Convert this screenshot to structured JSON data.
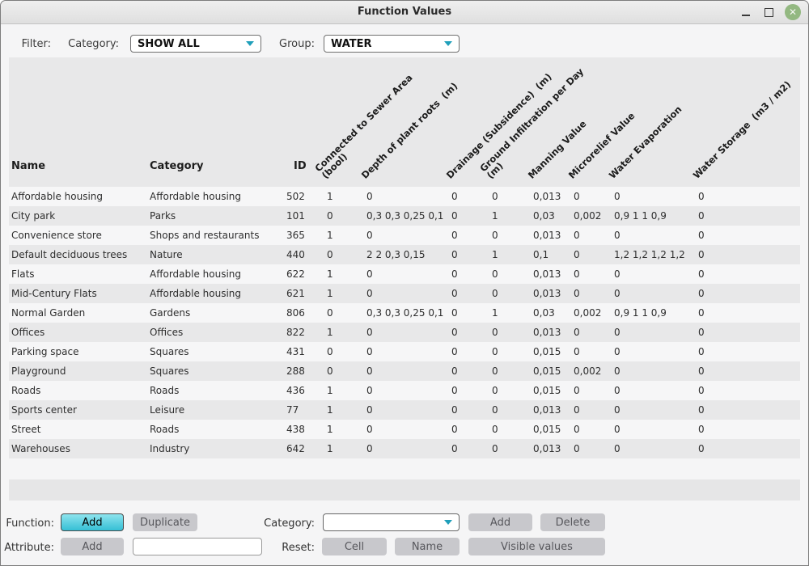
{
  "window": {
    "title": "Function Values"
  },
  "filter": {
    "filter_label": "Filter:",
    "category_label": "Category:",
    "category_value": "SHOW ALL",
    "group_label": "Group:",
    "group_value": "WATER"
  },
  "table": {
    "headers": [
      "Name",
      "Category",
      "ID"
    ],
    "rotated_headers": [
      "Connected to Sewer Area\n(bool)",
      "Depth of plant roots  (m)",
      "Drainage (Subsidence)  (m)",
      "Ground Infiltration per Day\n(m)",
      "Manning Value",
      "Microrelief Value",
      "Water Evaporation",
      "Water Storage  (m3 / m2)"
    ],
    "rows": [
      {
        "name": "Affordable housing",
        "category": "Affordable housing",
        "id": "502",
        "connected": "1",
        "depth": "0",
        "drainage": "0",
        "ground": "0",
        "manning": "0,013",
        "microrelief": "0",
        "evaporation": "0",
        "storage": "0"
      },
      {
        "name": "City park",
        "category": "Parks",
        "id": "101",
        "connected": "0",
        "depth": "0,3 0,3 0,25 0,1",
        "drainage": "0",
        "ground": "1",
        "manning": "0,03",
        "microrelief": "0,002",
        "evaporation": "0,9 1 1 0,9",
        "storage": "0"
      },
      {
        "name": "Convenience store",
        "category": "Shops and restaurants",
        "id": "365",
        "connected": "1",
        "depth": "0",
        "drainage": "0",
        "ground": "0",
        "manning": "0,013",
        "microrelief": "0",
        "evaporation": "0",
        "storage": "0"
      },
      {
        "name": "Default deciduous trees",
        "category": "Nature",
        "id": "440",
        "connected": "0",
        "depth": "2 2 0,3 0,15",
        "drainage": "0",
        "ground": "1",
        "manning": "0,1",
        "microrelief": "0",
        "evaporation": "1,2 1,2 1,2 1,2",
        "storage": "0"
      },
      {
        "name": "Flats",
        "category": "Affordable housing",
        "id": "622",
        "connected": "1",
        "depth": "0",
        "drainage": "0",
        "ground": "0",
        "manning": "0,013",
        "microrelief": "0",
        "evaporation": "0",
        "storage": "0"
      },
      {
        "name": "Mid-Century Flats",
        "category": "Affordable housing",
        "id": "621",
        "connected": "1",
        "depth": "0",
        "drainage": "0",
        "ground": "0",
        "manning": "0,013",
        "microrelief": "0",
        "evaporation": "0",
        "storage": "0"
      },
      {
        "name": "Normal Garden",
        "category": "Gardens",
        "id": "806",
        "connected": "0",
        "depth": "0,3 0,3 0,25 0,1",
        "drainage": "0",
        "ground": "1",
        "manning": "0,03",
        "microrelief": "0,002",
        "evaporation": "0,9 1 1 0,9",
        "storage": "0"
      },
      {
        "name": "Offices",
        "category": "Offices",
        "id": "822",
        "connected": "1",
        "depth": "0",
        "drainage": "0",
        "ground": "0",
        "manning": "0,013",
        "microrelief": "0",
        "evaporation": "0",
        "storage": "0"
      },
      {
        "name": "Parking space",
        "category": "Squares",
        "id": "431",
        "connected": "0",
        "depth": "0",
        "drainage": "0",
        "ground": "0",
        "manning": "0,015",
        "microrelief": "0",
        "evaporation": "0",
        "storage": "0"
      },
      {
        "name": "Playground",
        "category": "Squares",
        "id": "288",
        "connected": "0",
        "depth": "0",
        "drainage": "0",
        "ground": "0",
        "manning": "0,015",
        "microrelief": "0,002",
        "evaporation": "0",
        "storage": "0"
      },
      {
        "name": "Roads",
        "category": "Roads",
        "id": "436",
        "connected": "1",
        "depth": "0",
        "drainage": "0",
        "ground": "0",
        "manning": "0,015",
        "microrelief": "0",
        "evaporation": "0",
        "storage": "0"
      },
      {
        "name": "Sports center",
        "category": "Leisure",
        "id": "77",
        "connected": "1",
        "depth": "0",
        "drainage": "0",
        "ground": "0",
        "manning": "0,013",
        "microrelief": "0",
        "evaporation": "0",
        "storage": "0"
      },
      {
        "name": "Street",
        "category": "Roads",
        "id": "438",
        "connected": "1",
        "depth": "0",
        "drainage": "0",
        "ground": "0",
        "manning": "0,015",
        "microrelief": "0",
        "evaporation": "0",
        "storage": "0"
      },
      {
        "name": "Warehouses",
        "category": "Industry",
        "id": "642",
        "connected": "1",
        "depth": "0",
        "drainage": "0",
        "ground": "0",
        "manning": "0,013",
        "microrelief": "0",
        "evaporation": "0",
        "storage": "0"
      }
    ]
  },
  "footer": {
    "function_label": "Function:",
    "function_add": "Add",
    "duplicate": "Duplicate",
    "category_label": "Category:",
    "category_value": "",
    "category_add": "Add",
    "category_delete": "Delete",
    "attribute_label": "Attribute:",
    "attribute_add": "Add",
    "attribute_input_value": "",
    "reset_label": "Reset:",
    "reset_cell": "Cell",
    "reset_name": "Name",
    "reset_visible_values": "Visible values"
  },
  "colors": {
    "window-bg": "#f5f5f6",
    "stripe-dark": "#e8e8e9",
    "stripe-light": "#f6f6f7",
    "strip": "#e6e6e7",
    "accent": "#35bfd5",
    "accent-light": "#8ee4ee",
    "arrow-teal": "#1f9fba",
    "close-green": "#93b881",
    "button-gray": "#c8c8cc"
  }
}
